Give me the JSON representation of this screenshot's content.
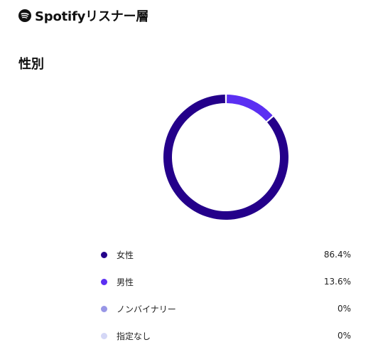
{
  "header": {
    "icon": "spotify-icon",
    "title": "Spotifyリスナー層"
  },
  "section": {
    "title": "性別"
  },
  "chart_data": {
    "type": "pie",
    "variant": "donut",
    "legend_placement": "bottom",
    "categories": [
      "女性",
      "男性",
      "ノンバイナリー",
      "指定なし"
    ],
    "values": [
      86.4,
      13.6,
      0,
      0
    ],
    "value_labels": [
      "86.4%",
      "13.6%",
      "0%",
      "0%"
    ],
    "colors": [
      "#24008a",
      "#5b2ff2",
      "#9896e6",
      "#d4d7f6"
    ]
  }
}
